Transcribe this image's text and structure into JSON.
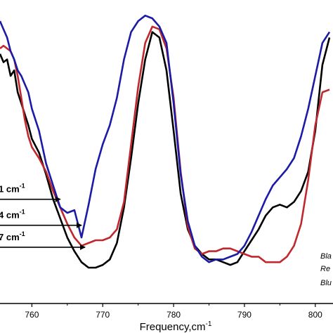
{
  "chart_data": {
    "type": "line",
    "xlabel": "Frequency,cm-1",
    "xlabel_main": "Frequency,cm",
    "xlabel_sup": "-1",
    "xlim": [
      755.5,
      802.5
    ],
    "x_ticks": [
      760,
      770,
      780,
      790,
      800
    ],
    "ylim": [
      0,
      1
    ],
    "grid": false,
    "legend": {
      "placement": "bottom-right",
      "entries": [
        "Bla",
        "Re",
        "Blu"
      ]
    },
    "annotations": [
      {
        "text_main": "1 cm",
        "text_sup": "-1",
        "arrow_to_x": 764.0,
        "arrow_y": 0.365
      },
      {
        "text_main": "4 cm",
        "text_sup": "-1",
        "arrow_to_x": 767.0,
        "arrow_y": 0.27
      },
      {
        "text_main": "7 cm",
        "text_sup": "-1",
        "arrow_to_x": 767.5,
        "arrow_y": 0.19
      }
    ],
    "series": [
      {
        "color": "#000000",
        "x": [
          755.5,
          756,
          756.5,
          757,
          757.5,
          758,
          758.5,
          759,
          759.5,
          760,
          761,
          762,
          763,
          764,
          765,
          766,
          767,
          768,
          769,
          770,
          771,
          772,
          773,
          774,
          775,
          776,
          777,
          778,
          779,
          780,
          781,
          782,
          783,
          784,
          785,
          786,
          787,
          788,
          789,
          790,
          791,
          792,
          793,
          794,
          795,
          796,
          797,
          798,
          799,
          800,
          801,
          802
        ],
        "y": [
          0.88,
          0.85,
          0.86,
          0.8,
          0.82,
          0.74,
          0.7,
          0.66,
          0.62,
          0.57,
          0.52,
          0.44,
          0.35,
          0.28,
          0.21,
          0.16,
          0.12,
          0.1,
          0.1,
          0.11,
          0.13,
          0.19,
          0.32,
          0.5,
          0.7,
          0.86,
          0.96,
          0.94,
          0.82,
          0.6,
          0.37,
          0.24,
          0.18,
          0.15,
          0.13,
          0.13,
          0.12,
          0.11,
          0.12,
          0.16,
          0.2,
          0.24,
          0.29,
          0.32,
          0.33,
          0.32,
          0.34,
          0.38,
          0.45,
          0.6,
          0.84,
          0.94
        ]
      },
      {
        "color": "#c0282d",
        "x": [
          755.5,
          756,
          756.5,
          757,
          757.5,
          758,
          758.5,
          759,
          759.5,
          760,
          761,
          762,
          763,
          764,
          765,
          766,
          767,
          768,
          769,
          770,
          771,
          772,
          773,
          774,
          775,
          776,
          777,
          778,
          779,
          780,
          781,
          782,
          783,
          784,
          785,
          786,
          787,
          788,
          789,
          790,
          791,
          792,
          793,
          794,
          795,
          796,
          797,
          798,
          799,
          800,
          801,
          802
        ],
        "y": [
          0.9,
          0.91,
          0.9,
          0.89,
          0.86,
          0.8,
          0.72,
          0.64,
          0.58,
          0.54,
          0.5,
          0.45,
          0.38,
          0.32,
          0.26,
          0.21,
          0.18,
          0.19,
          0.2,
          0.2,
          0.21,
          0.24,
          0.34,
          0.55,
          0.76,
          0.92,
          0.98,
          0.97,
          0.9,
          0.72,
          0.45,
          0.25,
          0.17,
          0.15,
          0.16,
          0.16,
          0.17,
          0.17,
          0.16,
          0.15,
          0.14,
          0.14,
          0.12,
          0.12,
          0.12,
          0.14,
          0.18,
          0.26,
          0.42,
          0.62,
          0.74,
          0.75
        ]
      },
      {
        "color": "#1b1ba6",
        "x": [
          755.5,
          756,
          756.5,
          757,
          757.5,
          758,
          758.5,
          759,
          759.5,
          760,
          761,
          762,
          763,
          764,
          765,
          766,
          767,
          768,
          769,
          770,
          771,
          772,
          773,
          774,
          775,
          776,
          777,
          778,
          779,
          780,
          781,
          782,
          783,
          784,
          785,
          786,
          787,
          788,
          789,
          790,
          791,
          792,
          793,
          794,
          795,
          796,
          797,
          798,
          799,
          800,
          801,
          802
        ],
        "y": [
          1.0,
          0.97,
          0.94,
          0.89,
          0.86,
          0.82,
          0.8,
          0.77,
          0.74,
          0.68,
          0.6,
          0.48,
          0.4,
          0.32,
          0.3,
          0.31,
          0.21,
          0.33,
          0.46,
          0.55,
          0.62,
          0.72,
          0.86,
          0.96,
          1.0,
          1.02,
          1.01,
          0.98,
          0.92,
          0.7,
          0.44,
          0.27,
          0.18,
          0.14,
          0.12,
          0.13,
          0.13,
          0.14,
          0.15,
          0.18,
          0.23,
          0.29,
          0.35,
          0.4,
          0.43,
          0.46,
          0.5,
          0.58,
          0.68,
          0.8,
          0.92,
          0.96
        ]
      }
    ]
  }
}
